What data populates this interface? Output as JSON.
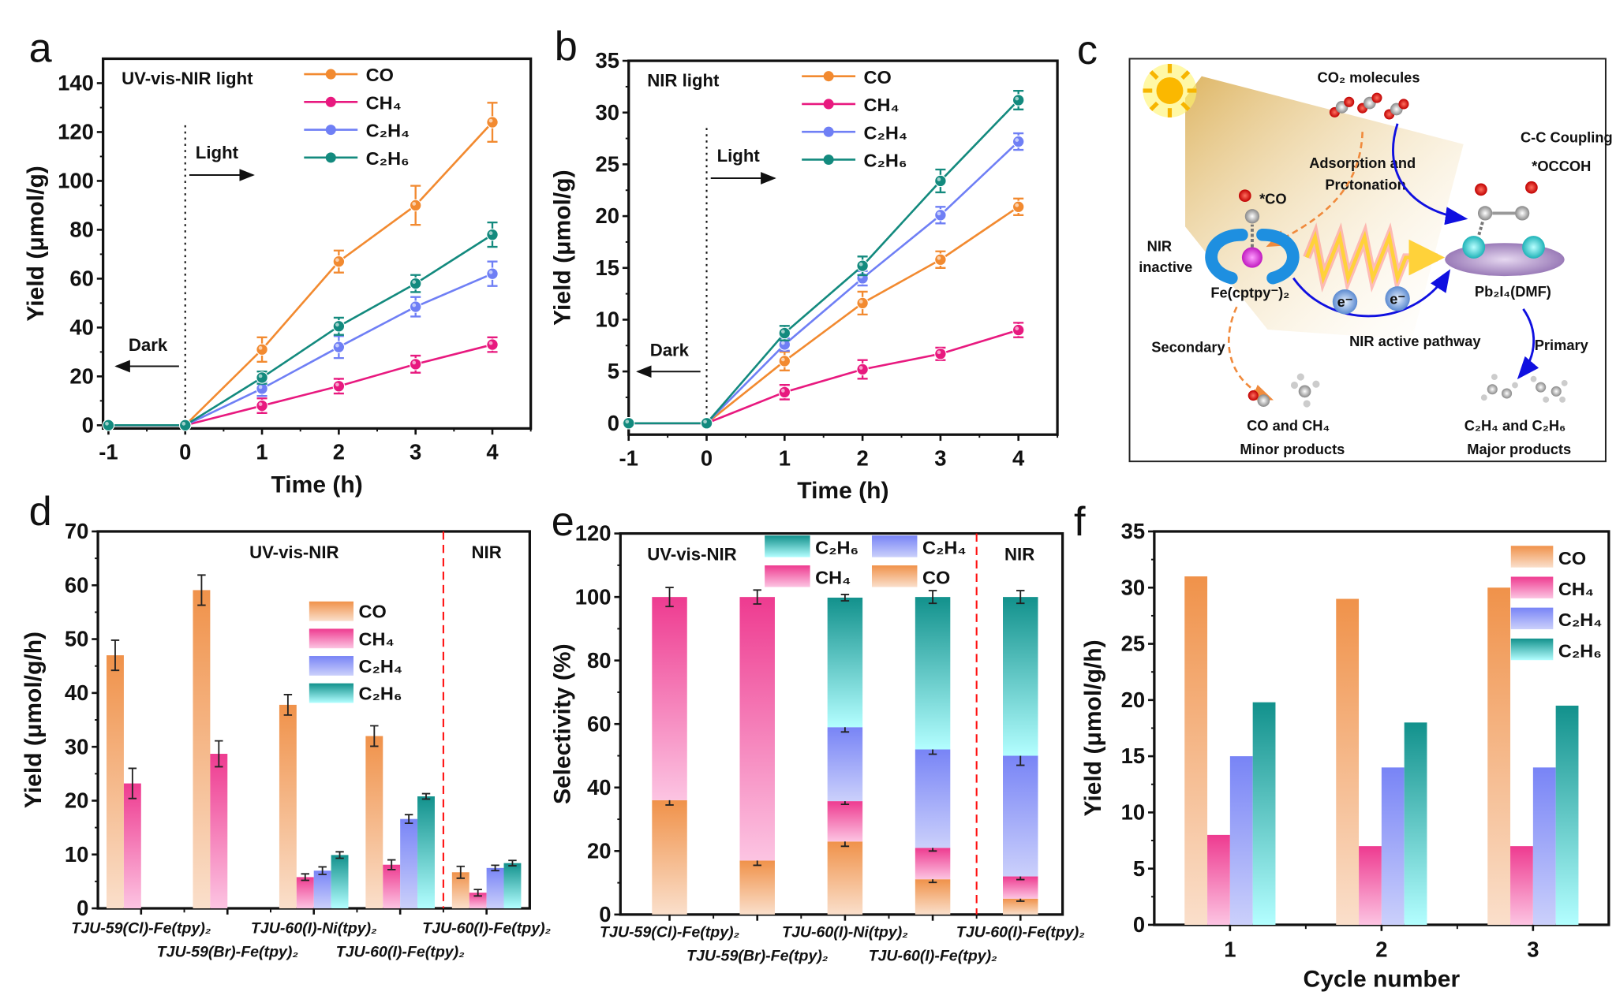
{
  "colors": {
    "CO": "#f28a30",
    "CH4": "#e8197f",
    "C2H4": "#6f7ff5",
    "C2H6": "#138a7e",
    "red": "#ff1010",
    "blue": "#1010e0",
    "orange": "#f08a3c"
  },
  "panels": {
    "a": {
      "letter": "a",
      "condition": "UV-vis-NIR light",
      "xlabel": "Time (h)",
      "ylabel": "Yield (μmol/g)",
      "xlim": [
        -1.07,
        4.5
      ],
      "ylim": [
        -1.3,
        150
      ],
      "xticks": [
        -1,
        0,
        1,
        2,
        3,
        4
      ],
      "yticks": [
        0,
        20,
        40,
        60,
        80,
        100,
        120,
        140
      ],
      "light_label": "Light",
      "dark_label": "Dark",
      "x": [
        -1,
        0,
        1,
        2,
        3,
        4
      ],
      "series": [
        {
          "name": "CO",
          "key": "CO",
          "y": [
            0,
            0,
            31,
            67,
            90,
            124
          ],
          "err": [
            0,
            0,
            5,
            4.5,
            8,
            8
          ]
        },
        {
          "name": "CH₄",
          "key": "CH4",
          "y": [
            0,
            0,
            8,
            16,
            25,
            33
          ],
          "err": [
            0,
            0,
            3,
            3,
            3.5,
            3
          ]
        },
        {
          "name": "C₂H₄",
          "key": "C2H4",
          "y": [
            0,
            0,
            15,
            32,
            48.5,
            62
          ],
          "err": [
            0,
            0,
            3,
            4.5,
            4,
            5
          ]
        },
        {
          "name": "C₂H₆",
          "key": "C2H6",
          "y": [
            0,
            0,
            19.5,
            40.5,
            58,
            78
          ],
          "err": [
            0,
            0,
            2.5,
            3.5,
            3.5,
            5
          ]
        }
      ]
    },
    "b": {
      "letter": "b",
      "condition": "NIR light",
      "xlabel": "Time (h)",
      "ylabel": "Yield (μmol/g)",
      "xlim": [
        -1,
        4.5
      ],
      "ylim": [
        -1.1,
        35
      ],
      "xticks": [
        -1,
        0,
        1,
        2,
        3,
        4
      ],
      "yticks": [
        0,
        5,
        10,
        15,
        20,
        25,
        30,
        35
      ],
      "light_label": "Light",
      "dark_label": "Dark",
      "x": [
        -1,
        0,
        1,
        2,
        3,
        4
      ],
      "series": [
        {
          "name": "CO",
          "key": "CO",
          "y": [
            0,
            0,
            6,
            11.6,
            15.8,
            20.9
          ],
          "err": [
            0,
            0,
            0.9,
            1.1,
            0.8,
            0.8
          ]
        },
        {
          "name": "CH₄",
          "key": "CH4",
          "y": [
            0,
            0,
            3,
            5.2,
            6.7,
            9
          ],
          "err": [
            0,
            0,
            0.7,
            0.9,
            0.6,
            0.7
          ]
        },
        {
          "name": "C₂H₄",
          "key": "C2H4",
          "y": [
            0,
            0,
            7.6,
            14,
            20.1,
            27.2
          ],
          "err": [
            0,
            0,
            0.6,
            0.7,
            0.8,
            0.8
          ]
        },
        {
          "name": "C₂H₆",
          "key": "C2H6",
          "y": [
            0,
            0,
            8.7,
            15.2,
            23.4,
            31.2
          ],
          "err": [
            0,
            0,
            0.7,
            0.9,
            1.1,
            0.9
          ]
        }
      ]
    },
    "c": {
      "letter": "c",
      "co2_molecules": "CO₂ molecules",
      "cc_coupling": "C-C Coupling",
      "occoh": "*OCCOH",
      "adsorption1": "Adsorption and",
      "adsorption2": "Protonation",
      "co_star": "*CO",
      "nir1": "NIR",
      "nir2": "inactive",
      "fe_complex": "Fe(cptpy⁻)₂",
      "pb_cluster": "Pb₂I₄(DMF)",
      "electron": "e⁻",
      "secondary": "Secondary",
      "nir_active": "NIR active pathway",
      "primary": "Primary",
      "minor_species": "CO and CH₄",
      "minor_label": "Minor products",
      "major_species": "C₂H₄ and C₂H₆",
      "major_label": "Major products"
    },
    "d": {
      "letter": "d",
      "ylabel": "Yield (μmol/g/h)",
      "ylim": [
        0,
        70
      ],
      "yticks": [
        0,
        10,
        20,
        30,
        40,
        50,
        60,
        70
      ],
      "region_left": "UV-vis-NIR",
      "region_right": "NIR",
      "categories": [
        "TJU-59(Cl)-Fe(tpy)₂",
        "TJU-59(Br)-Fe(tpy)₂",
        "TJU-60(I)-Ni(tpy)₂",
        "TJU-60(I)-Fe(tpy)₂",
        "TJU-60(I)-Fe(tpy)₂"
      ],
      "legend": [
        "CO",
        "CH₄",
        "C₂H₄",
        "C₂H₆"
      ],
      "series": [
        {
          "name": "CO",
          "key": "CO",
          "values": [
            47,
            59.1,
            37.8,
            32,
            6.7
          ],
          "err": [
            2.8,
            2.8,
            1.9,
            1.9,
            1.1
          ]
        },
        {
          "name": "CH₄",
          "key": "CH4",
          "values": [
            23.2,
            28.7,
            5.8,
            8.1,
            2.9
          ],
          "err": [
            2.8,
            2.4,
            0.6,
            0.9,
            0.6
          ]
        },
        {
          "name": "C₂H₄",
          "key": "C2H4",
          "values": [
            null,
            null,
            7,
            16.6,
            7.5
          ],
          "err": [
            0,
            0,
            0.7,
            0.8,
            0.5
          ]
        },
        {
          "name": "C₂H₆",
          "key": "C2H6",
          "values": [
            null,
            null,
            9.9,
            20.8,
            8.4
          ],
          "err": [
            0,
            0,
            0.6,
            0.5,
            0.5
          ]
        }
      ]
    },
    "e": {
      "letter": "e",
      "ylabel": "Selectivity (%)",
      "ylim": [
        0,
        120
      ],
      "yticks": [
        0,
        20,
        40,
        60,
        80,
        100,
        120
      ],
      "region_left": "UV-vis-NIR",
      "region_right": "NIR",
      "categories": [
        "TJU-59(Cl)-Fe(tpy)₂",
        "TJU-59(Br)-Fe(tpy)₂",
        "TJU-60(I)-Ni(tpy)₂",
        "TJU-60(I)-Fe(tpy)₂",
        "TJU-60(I)-Fe(tpy)₂"
      ],
      "legend": [
        "C₂H₆",
        "C₂H₄",
        "CH₄",
        "CO"
      ],
      "series": [
        {
          "name": "CO",
          "key": "CO",
          "values": [
            36,
            17,
            23,
            11.1,
            5
          ],
          "err": [
            1.5,
            1.5,
            1.5,
            1,
            0.8
          ]
        },
        {
          "name": "CH₄",
          "key": "CH4",
          "values": [
            64,
            83,
            12.7,
            9.9,
            7
          ],
          "err": [
            3,
            2.2,
            1,
            1,
            1
          ]
        },
        {
          "name": "C₂H₄",
          "key": "C2H4",
          "values": [
            0,
            0,
            23.3,
            31,
            38
          ],
          "err": [
            0,
            0,
            1.5,
            1.5,
            3
          ]
        },
        {
          "name": "C₂H₆",
          "key": "C2H6",
          "values": [
            0,
            0,
            40.8,
            48,
            50
          ],
          "err": [
            0,
            0,
            1,
            2,
            2
          ]
        }
      ]
    },
    "f": {
      "letter": "f",
      "xlabel": "Cycle number",
      "ylabel": "Yield (μmol/g/h)",
      "ylim": [
        0,
        35
      ],
      "yticks": [
        0,
        5,
        10,
        15,
        20,
        25,
        30,
        35
      ],
      "categories": [
        "1",
        "2",
        "3"
      ],
      "legend": [
        "CO",
        "CH₄",
        "C₂H₄",
        "C₂H₆"
      ],
      "series": [
        {
          "name": "CO",
          "key": "CO",
          "values": [
            31,
            29,
            30
          ]
        },
        {
          "name": "CH₄",
          "key": "CH4",
          "values": [
            8,
            7,
            7
          ]
        },
        {
          "name": "C₂H₄",
          "key": "C2H4",
          "values": [
            15,
            14,
            14
          ]
        },
        {
          "name": "C₂H₆",
          "key": "C2H6",
          "values": [
            19.8,
            18,
            19.5
          ]
        }
      ]
    }
  },
  "chart_data": [
    {
      "panel": "a",
      "type": "line",
      "title": "UV-vis-NIR light",
      "xlabel": "Time (h)",
      "ylabel": "Yield (μmol/g)",
      "x": [
        -1,
        0,
        1,
        2,
        3,
        4
      ],
      "ylim": [
        0,
        150
      ],
      "series": [
        {
          "name": "CO",
          "values": [
            0,
            0,
            31,
            67,
            90,
            124
          ]
        },
        {
          "name": "CH₄",
          "values": [
            0,
            0,
            8,
            16,
            25,
            33
          ]
        },
        {
          "name": "C₂H₄",
          "values": [
            0,
            0,
            15,
            32,
            48.5,
            62
          ]
        },
        {
          "name": "C₂H₆",
          "values": [
            0,
            0,
            19.5,
            40.5,
            58,
            78
          ]
        }
      ],
      "legend": "top-right"
    },
    {
      "panel": "b",
      "type": "line",
      "title": "NIR light",
      "xlabel": "Time (h)",
      "ylabel": "Yield (μmol/g)",
      "x": [
        -1,
        0,
        1,
        2,
        3,
        4
      ],
      "ylim": [
        0,
        35
      ],
      "series": [
        {
          "name": "CO",
          "values": [
            0,
            0,
            6,
            11.6,
            15.8,
            20.9
          ]
        },
        {
          "name": "CH₄",
          "values": [
            0,
            0,
            3,
            5.2,
            6.7,
            9
          ]
        },
        {
          "name": "C₂H₄",
          "values": [
            0,
            0,
            7.6,
            14,
            20.1,
            27.2
          ]
        },
        {
          "name": "C₂H₆",
          "values": [
            0,
            0,
            8.7,
            15.2,
            23.4,
            31.2
          ]
        }
      ],
      "legend": "top-center"
    },
    {
      "panel": "d",
      "type": "bar",
      "ylabel": "Yield (μmol/g/h)",
      "ylim": [
        0,
        70
      ],
      "categories": [
        "TJU-59(Cl)-Fe(tpy)₂",
        "TJU-59(Br)-Fe(tpy)₂",
        "TJU-60(I)-Ni(tpy)₂",
        "TJU-60(I)-Fe(tpy)₂",
        "TJU-60(I)-Fe(tpy)₂ (NIR)"
      ],
      "series": [
        {
          "name": "CO",
          "values": [
            47,
            59.1,
            37.8,
            32,
            6.7
          ]
        },
        {
          "name": "CH₄",
          "values": [
            23.2,
            28.7,
            5.8,
            8.1,
            2.9
          ]
        },
        {
          "name": "C₂H₄",
          "values": [
            0,
            0,
            7,
            16.6,
            7.5
          ]
        },
        {
          "name": "C₂H₆",
          "values": [
            0,
            0,
            9.9,
            20.8,
            8.4
          ]
        }
      ]
    },
    {
      "panel": "e",
      "type": "bar",
      "stacked": true,
      "ylabel": "Selectivity (%)",
      "ylim": [
        0,
        120
      ],
      "categories": [
        "TJU-59(Cl)-Fe(tpy)₂",
        "TJU-59(Br)-Fe(tpy)₂",
        "TJU-60(I)-Ni(tpy)₂",
        "TJU-60(I)-Fe(tpy)₂",
        "TJU-60(I)-Fe(tpy)₂ (NIR)"
      ],
      "series": [
        {
          "name": "CO",
          "values": [
            36,
            17,
            23,
            11.1,
            5
          ]
        },
        {
          "name": "CH₄",
          "values": [
            64,
            83,
            12.7,
            9.9,
            7
          ]
        },
        {
          "name": "C₂H₄",
          "values": [
            0,
            0,
            23.3,
            31,
            38
          ]
        },
        {
          "name": "C₂H₆",
          "values": [
            0,
            0,
            40.8,
            48,
            50
          ]
        }
      ]
    },
    {
      "panel": "f",
      "type": "bar",
      "xlabel": "Cycle number",
      "ylabel": "Yield (μmol/g/h)",
      "ylim": [
        0,
        35
      ],
      "categories": [
        "1",
        "2",
        "3"
      ],
      "series": [
        {
          "name": "CO",
          "values": [
            31,
            29,
            30
          ]
        },
        {
          "name": "CH₄",
          "values": [
            8,
            7,
            7
          ]
        },
        {
          "name": "C₂H₄",
          "values": [
            15,
            14,
            14
          ]
        },
        {
          "name": "C₂H₆",
          "values": [
            19.8,
            18,
            19.5
          ]
        }
      ],
      "legend": "top-right"
    }
  ]
}
